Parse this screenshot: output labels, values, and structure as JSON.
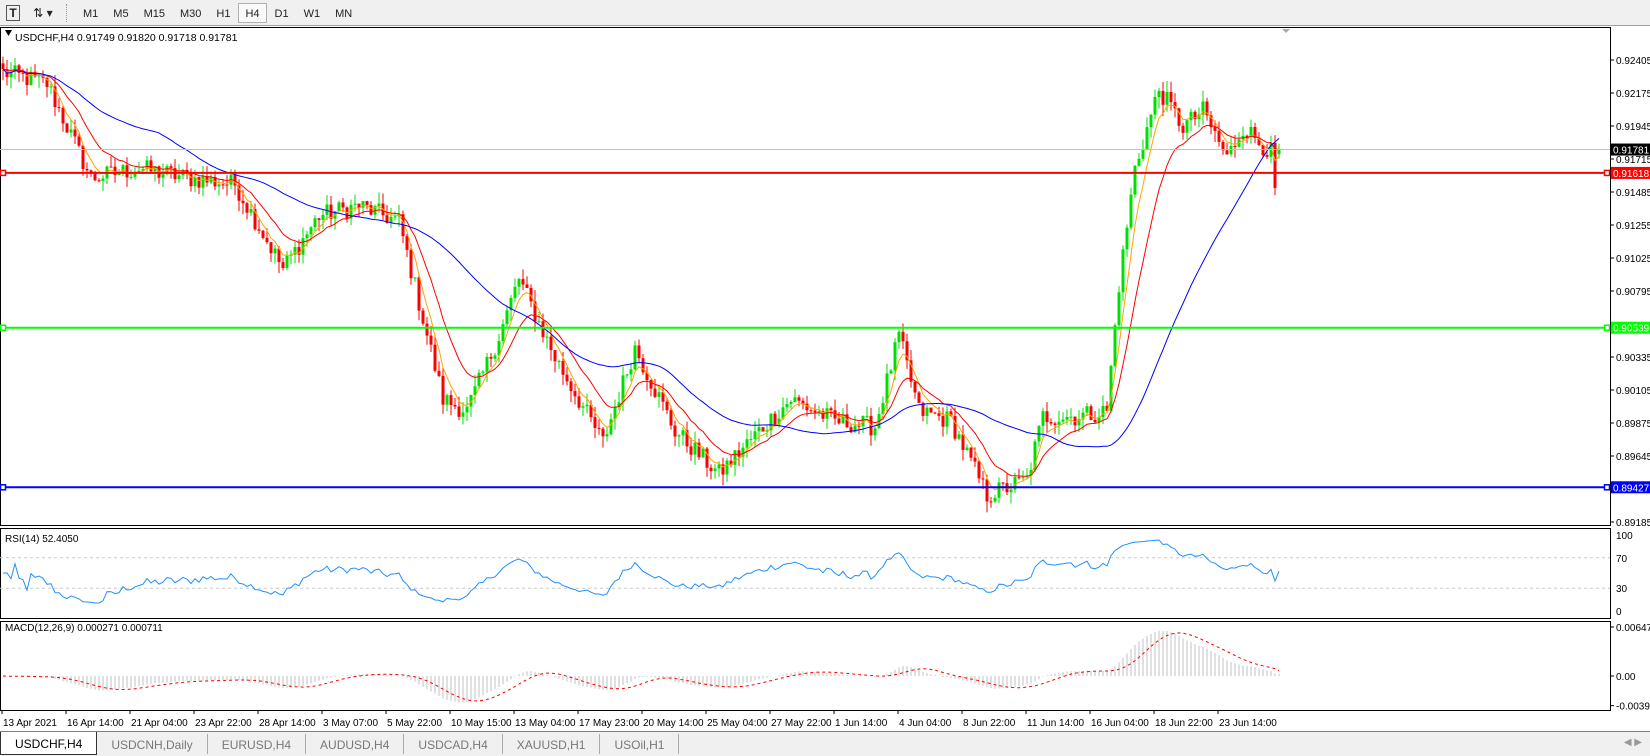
{
  "toolbar": {
    "text_tool_label": "T",
    "timeframes": [
      "M1",
      "M5",
      "M15",
      "M30",
      "H1",
      "H4",
      "D1",
      "W1",
      "MN"
    ],
    "active_timeframe": "H4"
  },
  "chart": {
    "header": "USDCHF,H4  0.91749 0.91820 0.91718 0.91781",
    "symbol": "USDCHF",
    "timeframe": "H4",
    "ohlc": {
      "open": 0.91749,
      "high": 0.9182,
      "low": 0.91718,
      "close": 0.91781
    },
    "current_price_label": "0.91781",
    "price_ticks": [
      "0.92405",
      "0.92175",
      "0.91945",
      "0.91715",
      "0.91485",
      "0.91255",
      "0.91025",
      "0.90795",
      "0.90335",
      "0.90105",
      "0.89875",
      "0.89645",
      "0.89185"
    ],
    "levels": [
      {
        "price": 0.91618,
        "label": "0.91618",
        "color": "#ff0000"
      },
      {
        "price": 0.90539,
        "label": "0.90539",
        "color": "#00ff00"
      },
      {
        "price": 0.89427,
        "label": "0.89427",
        "color": "#0000ff"
      }
    ],
    "colors": {
      "bull": "#00e000",
      "bear": "#ff0000",
      "ma_fast": "#ffa500",
      "ma_mid": "#ff0000",
      "ma_slow": "#0000ff",
      "rsi": "#1e90ff",
      "macd_hist": "#c0c0c0",
      "macd_signal": "#ff0000"
    },
    "time_labels": [
      "13 Apr 2021",
      "16 Apr 14:00",
      "21 Apr 04:00",
      "23 Apr 22:00",
      "28 Apr 14:00",
      "3 May 07:00",
      "5 May 22:00",
      "10 May 15:00",
      "13 May 04:00",
      "17 May 23:00",
      "20 May 14:00",
      "25 May 04:00",
      "27 May 22:00",
      "1 Jun 14:00",
      "4 Jun 04:00",
      "8 Jun 22:00",
      "11 Jun 14:00",
      "16 Jun 04:00",
      "18 Jun 22:00",
      "23 Jun 14:00"
    ]
  },
  "rsi": {
    "label": "RSI(14) 52.4050",
    "ticks": [
      "100",
      "70",
      "30",
      "0"
    ]
  },
  "macd": {
    "label": "MACD(12,26,9) 0.000271 0.000711",
    "ticks": [
      "0.00647",
      "0.00",
      "-0.00391"
    ]
  },
  "chart_data": {
    "type": "candlestick",
    "symbol": "USDCHF",
    "timeframe": "H4",
    "ylim": [
      0.89185,
      0.92405
    ],
    "close_path": [
      {
        "bar": 0,
        "price": 0.9232
      },
      {
        "bar": 11,
        "price": 0.9224
      },
      {
        "bar": 22,
        "price": 0.9158
      },
      {
        "bar": 34,
        "price": 0.9165
      },
      {
        "bar": 47,
        "price": 0.9158
      },
      {
        "bar": 58,
        "price": 0.9154
      },
      {
        "bar": 70,
        "price": 0.9095
      },
      {
        "bar": 79,
        "price": 0.9132
      },
      {
        "bar": 89,
        "price": 0.9139
      },
      {
        "bar": 99,
        "price": 0.9128
      },
      {
        "bar": 110,
        "price": 0.9004
      },
      {
        "bar": 116,
        "price": 0.8996
      },
      {
        "bar": 124,
        "price": 0.9048
      },
      {
        "bar": 129,
        "price": 0.9088
      },
      {
        "bar": 138,
        "price": 0.9033
      },
      {
        "bar": 150,
        "price": 0.8974
      },
      {
        "bar": 158,
        "price": 0.904
      },
      {
        "bar": 168,
        "price": 0.8982
      },
      {
        "bar": 179,
        "price": 0.8952
      },
      {
        "bar": 189,
        "price": 0.8982
      },
      {
        "bar": 197,
        "price": 0.9004
      },
      {
        "bar": 208,
        "price": 0.8989
      },
      {
        "bar": 218,
        "price": 0.8985
      },
      {
        "bar": 224,
        "price": 0.9048
      },
      {
        "bar": 229,
        "price": 0.8996
      },
      {
        "bar": 237,
        "price": 0.8989
      },
      {
        "bar": 246,
        "price": 0.8937
      },
      {
        "bar": 256,
        "price": 0.8948
      },
      {
        "bar": 260,
        "price": 0.8992
      },
      {
        "bar": 268,
        "price": 0.8992
      },
      {
        "bar": 276,
        "price": 0.8996
      },
      {
        "bar": 279,
        "price": 0.9084
      },
      {
        "bar": 283,
        "price": 0.9165
      },
      {
        "bar": 289,
        "price": 0.922
      },
      {
        "bar": 295,
        "price": 0.9194
      },
      {
        "bar": 300,
        "price": 0.9205
      },
      {
        "bar": 306,
        "price": 0.9172
      },
      {
        "bar": 310,
        "price": 0.9194
      },
      {
        "bar": 317,
        "price": 0.9176
      },
      {
        "bar": 318,
        "price": 0.9147
      },
      {
        "bar": 319,
        "price": 0.91781
      }
    ],
    "indicators": [
      "MA fast (orange)",
      "MA mid (red)",
      "MA slow (blue)",
      "RSI(14)",
      "MACD(12,26,9)"
    ],
    "rsi_levels": [
      70,
      30
    ],
    "rsi_last": 52.405,
    "macd_last": {
      "main": 0.000271,
      "signal": 0.000711
    },
    "macd_range": [
      -0.00391,
      0.00647
    ]
  },
  "tabs": [
    "USDCHF,H4",
    "USDCNH,Daily",
    "EURUSD,H4",
    "AUDUSD,H4",
    "USDCAD,H4",
    "XAUUSD,H1",
    "USOil,H1"
  ],
  "active_tab": "USDCHF,H4"
}
